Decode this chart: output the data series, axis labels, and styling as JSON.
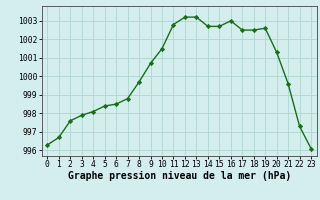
{
  "x": [
    0,
    1,
    2,
    3,
    4,
    5,
    6,
    7,
    8,
    9,
    10,
    11,
    12,
    13,
    14,
    15,
    16,
    17,
    18,
    19,
    20,
    21,
    22,
    23
  ],
  "y": [
    996.3,
    996.7,
    997.6,
    997.9,
    998.1,
    998.4,
    998.5,
    998.8,
    999.7,
    1000.7,
    1001.5,
    1002.8,
    1003.2,
    1003.2,
    1002.7,
    1002.7,
    1003.0,
    1002.5,
    1002.5,
    1002.6,
    1001.3,
    999.6,
    997.3,
    996.1
  ],
  "line_color": "#1a6e1a",
  "marker": "D",
  "marker_size": 2.2,
  "bg_color": "#d4eeed",
  "grid_color": "#b2d8d5",
  "xlabel": "Graphe pression niveau de la mer (hPa)",
  "xlabel_fontsize": 7,
  "xlim": [
    -0.5,
    23.5
  ],
  "ylim": [
    995.7,
    1003.8
  ],
  "yticks": [
    996,
    997,
    998,
    999,
    1000,
    1001,
    1002,
    1003
  ],
  "xticks": [
    0,
    1,
    2,
    3,
    4,
    5,
    6,
    7,
    8,
    9,
    10,
    11,
    12,
    13,
    14,
    15,
    16,
    17,
    18,
    19,
    20,
    21,
    22,
    23
  ],
  "tick_label_fontsize": 5.8,
  "line_width": 1.0
}
